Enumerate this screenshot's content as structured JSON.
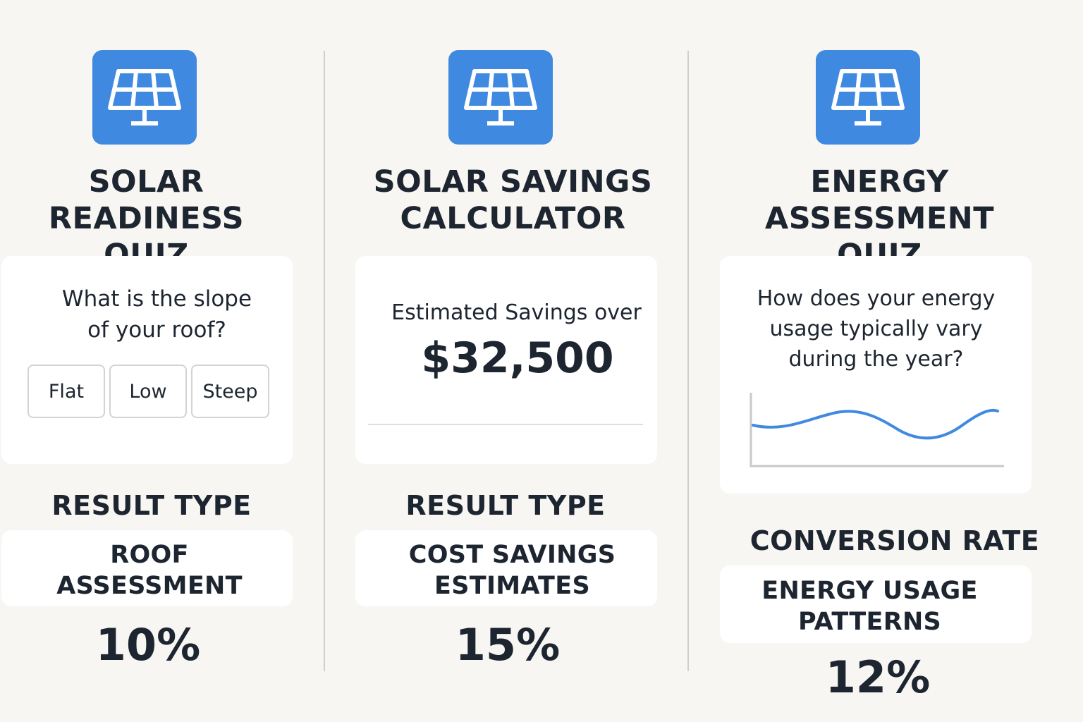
{
  "colors": {
    "accent": "#3f8ae0",
    "background": "#f8f6f3",
    "card": "#ffffff",
    "text": "#1d2530"
  },
  "columns": [
    {
      "icon": "solar-panel-icon",
      "title_line1": "SOLAR READINESS",
      "title_line2": "QUIZ",
      "question_line1": "What is the slope",
      "question_line2": "of your roof?",
      "options": [
        "Flat",
        "Low",
        "Steep"
      ],
      "metric_label": "RESULT TYPE",
      "result_line1": "ROOF",
      "result_line2": "ASSESSMENT",
      "percent": "10%"
    },
    {
      "icon": "solar-panel-icon",
      "title_line1": "SOLAR SAVINGS",
      "title_line2": "CALCULATOR",
      "savings_label": "Estimated Savings over",
      "savings_value": "$32,500",
      "metric_label": "RESULT TYPE",
      "result_line1": "COST SAVINGS",
      "result_line2": "ESTIMATES",
      "percent": "15%"
    },
    {
      "icon": "solar-panel-icon",
      "title_line1": "ENERGY ASSESSMENT",
      "title_line2": "QUIZ",
      "question_line1": "How does your energy",
      "question_line2": "usage typically vary",
      "question_line3": "during the year?",
      "metric_label": "CONVERSION RATE",
      "result_line1": "ENERGY USAGE",
      "result_line2": "PATTERNS",
      "percent": "12%"
    }
  ]
}
